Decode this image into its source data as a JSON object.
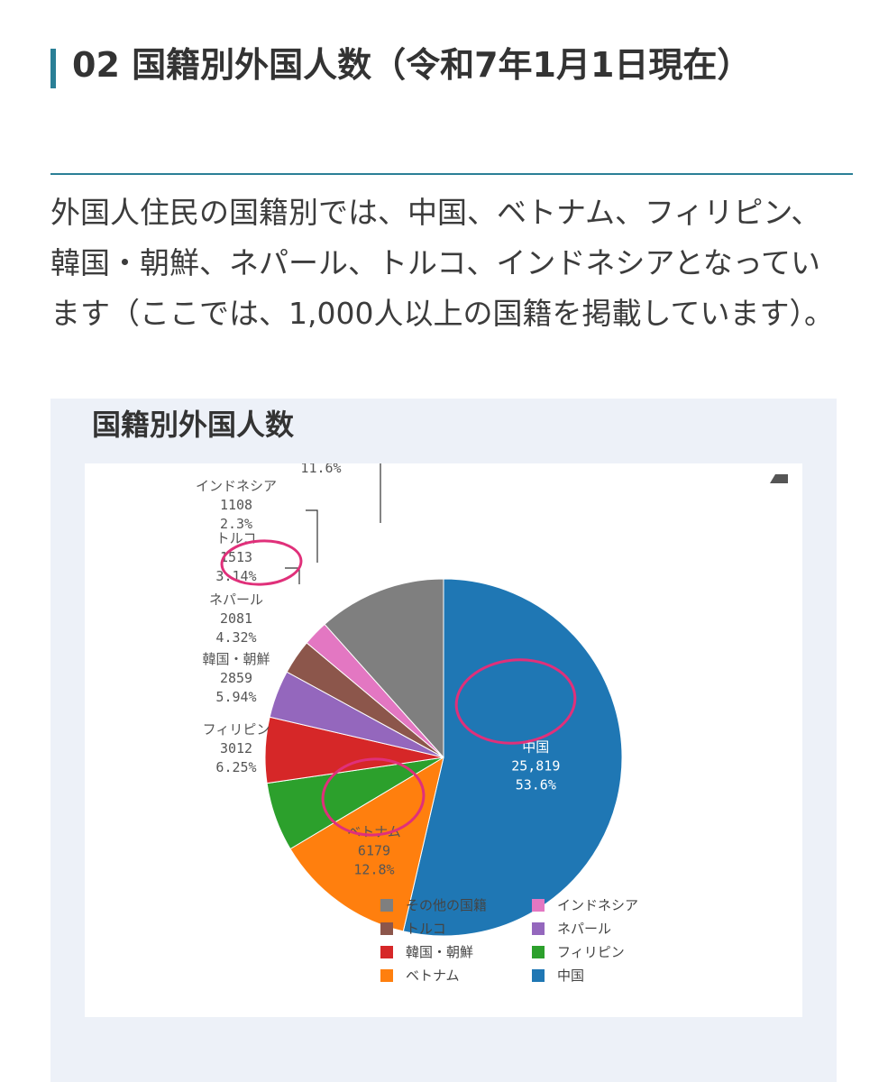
{
  "section": {
    "title": "02 国籍別外国人数（令和7年1月1日現在）"
  },
  "intro": "外国人住民の国籍別では、中国、ベトナム、フィリピン、韓国・朝鮮、ネパール、トルコ、インドネシアとなっています（ここでは、1,000人以上の国籍を掲載しています）。",
  "chart_data": {
    "type": "pie",
    "title": "国籍別外国人数",
    "direction": "clockwise from 12 o'clock",
    "slices": [
      {
        "label": "中国",
        "value": 25819,
        "value_text": "25,819",
        "percent": "53.6%",
        "color": "#1f77b4"
      },
      {
        "label": "ベトナム",
        "value": 6179,
        "value_text": "6179",
        "percent": "12.8%",
        "color": "#ff7f0e"
      },
      {
        "label": "フィリピン",
        "value": 3012,
        "value_text": "3012",
        "percent": "6.25%",
        "color": "#2ca02c"
      },
      {
        "label": "韓国・朝鮮",
        "value": 2859,
        "value_text": "2859",
        "percent": "5.94%",
        "color": "#d62728"
      },
      {
        "label": "ネパール",
        "value": 2081,
        "value_text": "2081",
        "percent": "4.32%",
        "color": "#9467bd"
      },
      {
        "label": "トルコ",
        "value": 1513,
        "value_text": "1513",
        "percent": "3.14%",
        "color": "#8c564b"
      },
      {
        "label": "インドネシア",
        "value": 1108,
        "value_text": "1108",
        "percent": "2.3%",
        "color": "#e377c2"
      },
      {
        "label": "その他の国籍",
        "value": null,
        "value_text": "",
        "percent": "11.6%",
        "color": "#7f7f7f"
      }
    ],
    "legend": {
      "placement": "bottom",
      "items": [
        "その他の国籍",
        "インドネシア",
        "トルコ",
        "ネパール",
        "韓国・朝鮮",
        "フィリピン",
        "ベトナム",
        "中国"
      ]
    },
    "annotations": [
      {
        "target": "トルコ",
        "type": "handwritten circle",
        "color": "#e0307a"
      },
      {
        "target": "中国",
        "type": "handwritten circle",
        "color": "#e0307a"
      },
      {
        "target": "ベトナム",
        "type": "handwritten circle",
        "color": "#e0307a"
      }
    ]
  }
}
